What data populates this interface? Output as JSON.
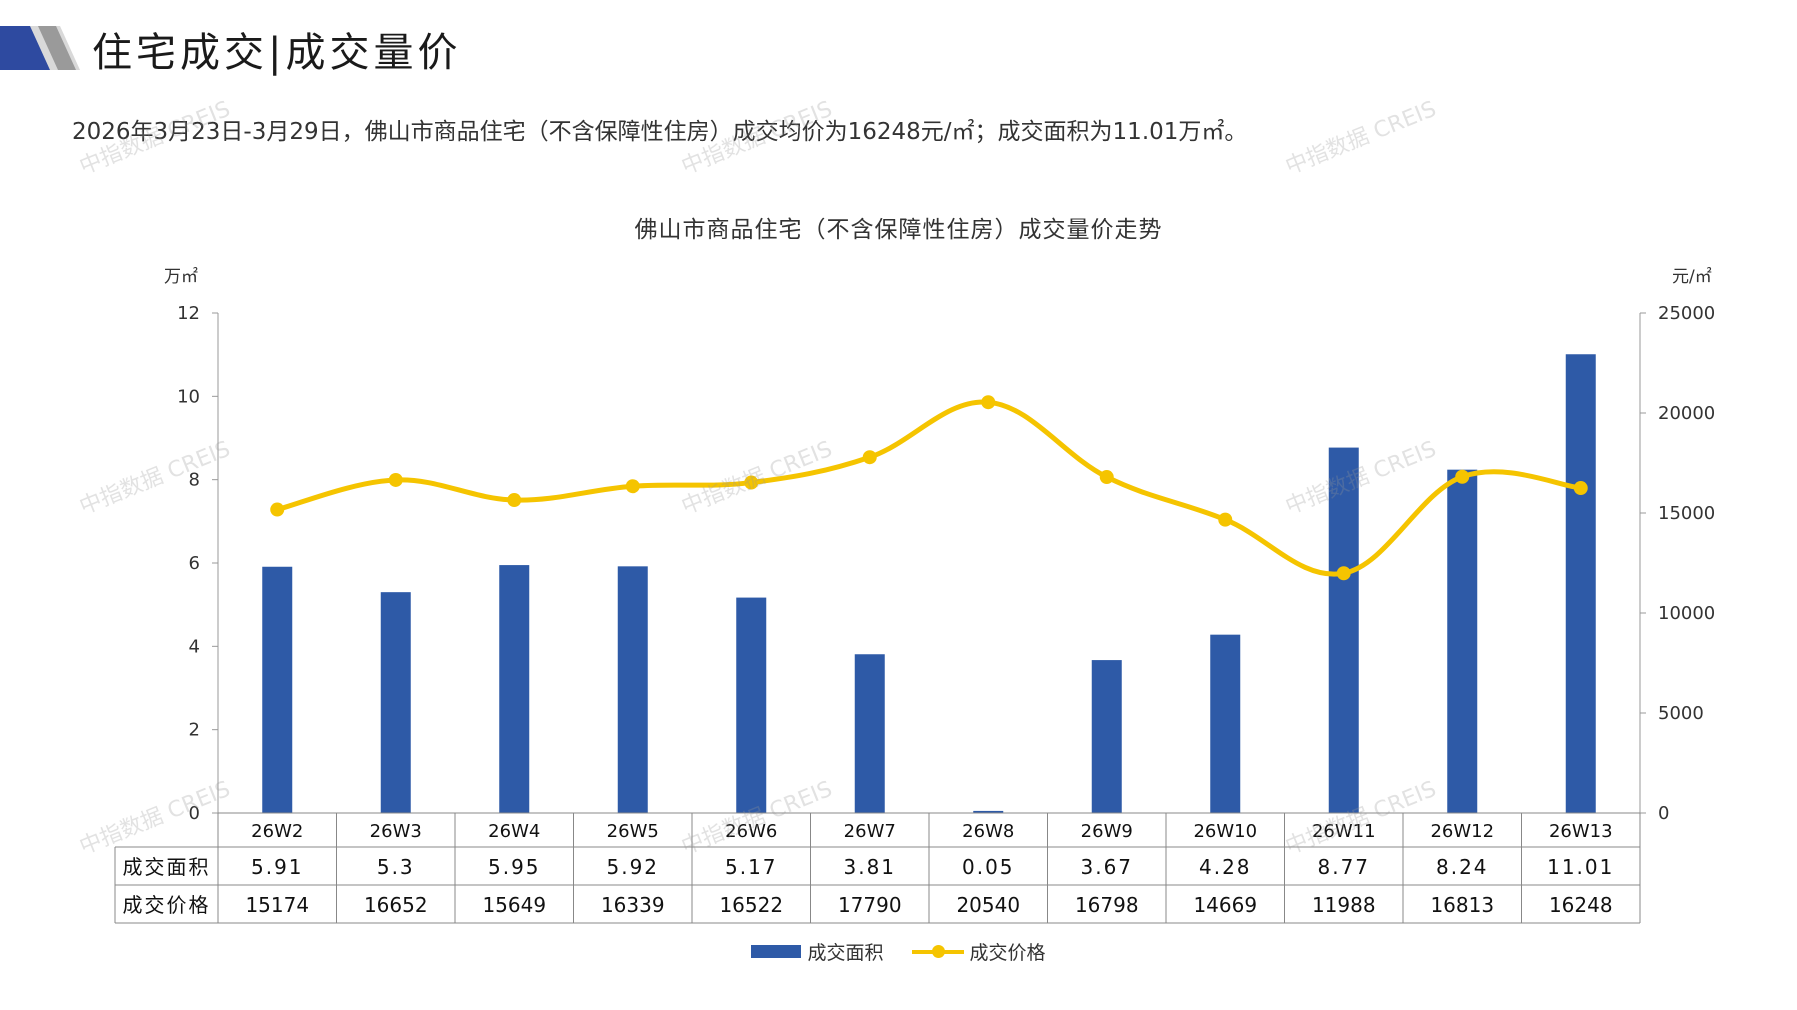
{
  "header": {
    "title": "住宅成交|成交量价",
    "summary": "2026年3月23日-3月29日，佛山市商品住宅（不含保障性住房）成交均价为16248元/㎡；成交面积为11.01万㎡。"
  },
  "watermark_text": "中指数据 CREIS",
  "colors": {
    "bar": "#2e5aa7",
    "line": "#f5c400",
    "accent": "#2e4aa0"
  },
  "chart_data": {
    "type": "bar",
    "title": "佛山市商品住宅（不含保障性住房）成交量价走势",
    "categories": [
      "26W2",
      "26W3",
      "26W4",
      "26W5",
      "26W6",
      "26W7",
      "26W8",
      "26W9",
      "26W10",
      "26W11",
      "26W12",
      "26W13"
    ],
    "series": [
      {
        "name": "成交面积",
        "type": "bar",
        "axis": "left",
        "values": [
          5.91,
          5.3,
          5.95,
          5.92,
          5.17,
          3.81,
          0.05,
          3.67,
          4.28,
          8.77,
          8.24,
          11.01
        ],
        "labels": [
          "5.91",
          "5.3",
          "5.95",
          "5.92",
          "5.17",
          "3.81",
          "0.05",
          "3.67",
          "4.28",
          "8.77",
          "8.24",
          "11.01"
        ]
      },
      {
        "name": "成交价格",
        "type": "line",
        "axis": "right",
        "values": [
          15174,
          16652,
          15649,
          16339,
          16522,
          17790,
          20540,
          16798,
          14669,
          11988,
          16813,
          16248
        ],
        "labels": [
          "15174",
          "16652",
          "15649",
          "16339",
          "16522",
          "17790",
          "20540",
          "16798",
          "14669",
          "11988",
          "16813",
          "16248"
        ]
      }
    ],
    "y_left": {
      "unit": "万㎡",
      "min": 0,
      "max": 12,
      "ticks": [
        "0",
        "2",
        "4",
        "6",
        "8",
        "10",
        "12"
      ]
    },
    "y_right": {
      "unit": "元/㎡",
      "min": 0,
      "max": 25000,
      "ticks": [
        "0",
        "5000",
        "10000",
        "15000",
        "20000",
        "25000"
      ]
    },
    "data_table": true,
    "legend": "bottom-center"
  }
}
